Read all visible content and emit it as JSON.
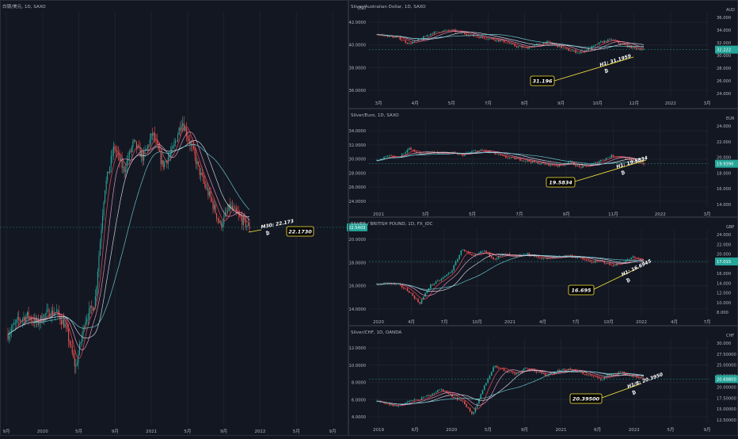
{
  "colors": {
    "background": "#131722",
    "grid": "#1e222d",
    "text": "#b2b5be",
    "bull": "#26a69a",
    "bear": "#ef5350",
    "ma_red": "#e84a55",
    "ma_white": "#e0e3eb",
    "ma_pink": "#f2a0c8",
    "ma_teal": "#6fd4dc",
    "badge": "#26a69a",
    "annotation": "#ffeb3b"
  },
  "chart_data": [
    {
      "type": "candlestick",
      "title": "白银/美元, 1D, SAXO",
      "x_tick_labels": [
        "9月",
        "2020",
        "5月",
        "9月",
        "2021",
        "5月",
        "9月",
        "2022",
        "5月",
        "9月"
      ],
      "y_tick_labels": [],
      "axis_unit": "",
      "price_badge": "22.5403",
      "annotation_label": "M30: 22.173",
      "annotation_symbol": "₿",
      "callout": "22.1730",
      "series": [
        {
          "name": "price",
          "x": [
            0,
            4,
            8,
            12,
            16,
            20,
            24,
            28,
            32,
            36,
            40,
            44,
            48,
            52,
            56,
            60,
            64,
            68,
            72,
            76,
            80,
            84,
            88,
            92,
            96,
            100
          ],
          "y": [
            16.8,
            17.5,
            17.8,
            17.4,
            17.9,
            18.0,
            17.2,
            15.0,
            17.6,
            18.5,
            24.5,
            26.8,
            25.5,
            27.0,
            26.2,
            27.5,
            25.8,
            26.5,
            28.2,
            26.8,
            25.2,
            24.0,
            22.6,
            23.6,
            23.0,
            22.5
          ]
        }
      ]
    },
    {
      "type": "candlestick",
      "title": "Silver/Australian Dollar, 1D, SAXO",
      "x_tick_labels": [
        "3月",
        "4月",
        "5月",
        "7月",
        "8月",
        "9月",
        "10月",
        "12月",
        "2022",
        "3月"
      ],
      "y_tick_labels": [
        "42.0000",
        "40.0000",
        "38.0000",
        "36.0000"
      ],
      "axis_unit": "USD",
      "axis_unit_right": "AUD",
      "right_tick_labels": [
        "36.000",
        "34.000",
        "32.000",
        "30.000",
        "28.000",
        "26.000",
        "24.000"
      ],
      "price_badge": "32.222",
      "annotation_label": "H1: 31.1959",
      "annotation_symbol": "₿",
      "callout": "31.196",
      "series": [
        {
          "name": "price",
          "x": [
            0,
            4,
            8,
            12,
            16,
            20,
            24,
            28,
            32,
            36,
            40,
            44,
            48,
            52,
            56,
            60,
            64,
            68,
            72,
            76,
            80,
            84,
            88,
            92,
            96,
            100
          ],
          "y": [
            41.4,
            41.2,
            41.0,
            40.3,
            40.8,
            41.5,
            41.8,
            41.9,
            41.6,
            41.2,
            41.0,
            40.8,
            40.5,
            40.0,
            39.8,
            40.2,
            40.5,
            40.0,
            39.5,
            39.2,
            39.8,
            40.5,
            40.8,
            40.2,
            39.8,
            39.6
          ]
        }
      ]
    },
    {
      "type": "candlestick",
      "title": "Silver/Euro, 1D, SAXO",
      "x_tick_labels": [
        "2021",
        "3月",
        "5月",
        "7月",
        "9月",
        "11月",
        "2022",
        "3月"
      ],
      "y_tick_labels": [
        "34.0000",
        "32.0000",
        "30.0000",
        "28.0000",
        "26.0000",
        "24.0000"
      ],
      "axis_unit": "",
      "axis_unit_right": "EUR",
      "right_tick_labels": [
        "24.000",
        "22.000",
        "20.000",
        "18.000",
        "16.000",
        "14.000"
      ],
      "price_badge": "19.9390",
      "annotation_label": "H1: 19.5834",
      "annotation_symbol": "₿",
      "callout": "19.5834",
      "series": [
        {
          "name": "price",
          "x": [
            0,
            4,
            8,
            12,
            16,
            20,
            24,
            28,
            32,
            36,
            40,
            44,
            48,
            52,
            56,
            60,
            64,
            68,
            72,
            76,
            80,
            84,
            88,
            92,
            96,
            100
          ],
          "y": [
            29.5,
            30.2,
            30.0,
            31.2,
            30.4,
            30.8,
            30.5,
            30.6,
            30.3,
            30.8,
            31.0,
            30.5,
            30.0,
            29.8,
            29.5,
            29.2,
            29.0,
            28.8,
            29.4,
            28.6,
            28.9,
            29.6,
            30.2,
            30.0,
            29.4,
            29.1
          ]
        }
      ]
    },
    {
      "type": "candlestick",
      "title": "SILVER / BRITISH POUND, 1D, FX_IDC",
      "x_tick_labels": [
        "2020",
        "4月",
        "7月",
        "10月",
        "2021",
        "4月",
        "7月",
        "10月",
        "2022",
        "4月",
        "7月"
      ],
      "y_tick_labels": [
        "20.0000",
        "18.0000",
        "16.0000",
        "14.0000"
      ],
      "axis_unit": "",
      "axis_unit_right": "GBP",
      "right_tick_labels": [
        "24.000",
        "22.000",
        "20.000",
        "18.000",
        "16.000",
        "14.000",
        "12.000",
        "10.000",
        "8.000"
      ],
      "price_badge": "17.015",
      "annotation_label": "H1: 16.6945",
      "annotation_symbol": "₿",
      "callout": "16.695",
      "series": [
        {
          "name": "price",
          "x": [
            0,
            4,
            8,
            12,
            16,
            20,
            24,
            28,
            32,
            36,
            40,
            44,
            48,
            52,
            56,
            60,
            64,
            68,
            72,
            76,
            80,
            84,
            88,
            92,
            96,
            100
          ],
          "y": [
            16.6,
            16.8,
            16.6,
            15.8,
            14.4,
            16.5,
            17.2,
            18.2,
            20.8,
            19.8,
            20.6,
            19.6,
            20.2,
            19.8,
            20.2,
            19.8,
            19.6,
            19.9,
            20.0,
            19.7,
            19.2,
            19.4,
            18.8,
            19.2,
            19.8,
            19.3
          ]
        }
      ]
    },
    {
      "type": "candlestick",
      "title": "Silver/CHF, 1D, OANDA",
      "x_tick_labels": [
        "2019",
        "6月",
        "2020",
        "5月",
        "9月",
        "2021",
        "6月",
        "2022",
        "5月",
        "9月"
      ],
      "y_tick_labels": [
        "12.0000",
        "10.0000",
        "8.0000",
        "6.0000",
        "4.0000"
      ],
      "axis_unit": "",
      "axis_unit_right": "CHF",
      "right_tick_labels": [
        "30.000",
        "27.50000",
        "25.00000",
        "22.50000",
        "20.00000",
        "17.50000",
        "15.00000",
        "12.50000"
      ],
      "price_badge": "20.69800",
      "annotation_label": "H1/8: 20.3950",
      "annotation_symbol": "₿",
      "callout": "20.39500",
      "series": [
        {
          "name": "price",
          "x": [
            0,
            4,
            8,
            12,
            16,
            20,
            24,
            28,
            32,
            36,
            40,
            44,
            48,
            52,
            56,
            60,
            64,
            68,
            72,
            76,
            80,
            84,
            88,
            92,
            96,
            100
          ],
          "y": [
            5.6,
            5.2,
            5.0,
            5.6,
            5.8,
            6.4,
            7.0,
            6.2,
            5.6,
            4.0,
            7.2,
            9.8,
            9.2,
            8.8,
            9.6,
            9.0,
            8.6,
            9.2,
            9.4,
            9.0,
            8.6,
            8.2,
            8.8,
            9.0,
            8.4,
            8.2
          ]
        }
      ]
    }
  ]
}
